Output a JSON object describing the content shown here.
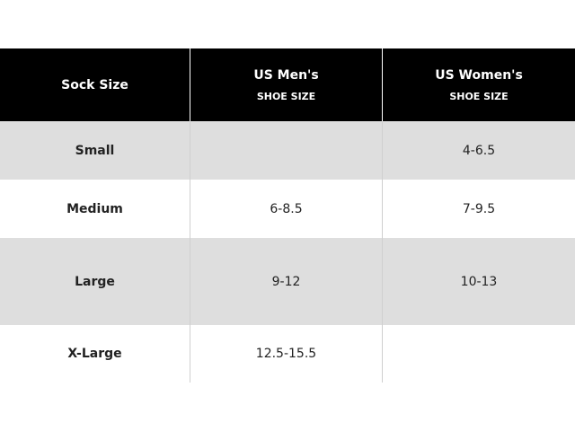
{
  "table": {
    "headers": [
      {
        "main": "Sock Size",
        "sub": ""
      },
      {
        "main": "US Men's",
        "sub": "SHOE SIZE"
      },
      {
        "main": "US Women's",
        "sub": "SHOE SIZE"
      }
    ],
    "rows": [
      {
        "size": "Small",
        "men": "",
        "women": "4-6.5"
      },
      {
        "size": "Medium",
        "men": "6-8.5",
        "women": "7-9.5"
      },
      {
        "size": "Large",
        "men": "9-12",
        "women": "10-13"
      },
      {
        "size": "X-Large",
        "men": "12.5-15.5",
        "women": ""
      }
    ]
  },
  "colors": {
    "header_bg": "#000000",
    "stripe_bg": "#dedede"
  }
}
